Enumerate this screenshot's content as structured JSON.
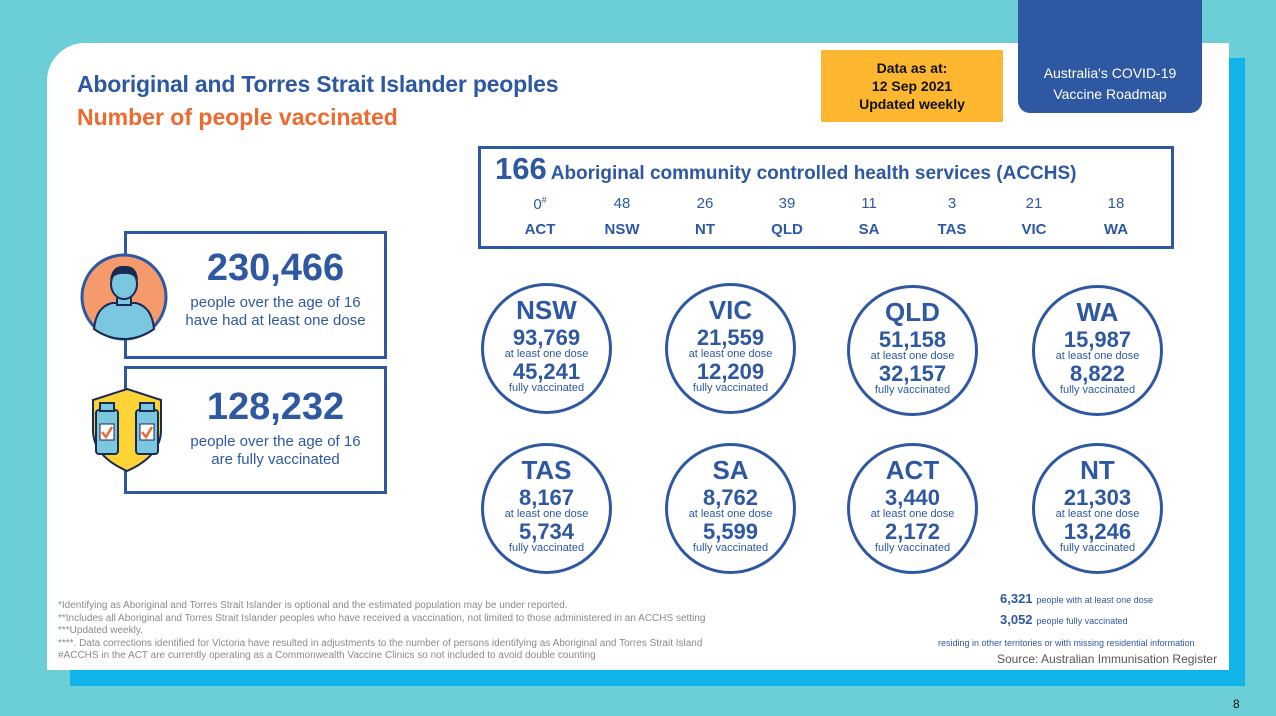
{
  "header": {
    "title_line1": "Aboriginal and Torres Strait Islander peoples",
    "title_line2": "Number of people vaccinated",
    "date_box": [
      "Data as at:",
      "12 Sep 2021",
      "Updated weekly"
    ],
    "roadmap_label": [
      "Australia's COVID-19",
      "Vaccine Roadmap"
    ]
  },
  "acchs": {
    "total": "166",
    "label": "Aboriginal community controlled health services (ACCHS)",
    "items": [
      {
        "state": "ACT",
        "count": "0",
        "mark": "#"
      },
      {
        "state": "NSW",
        "count": "48",
        "mark": ""
      },
      {
        "state": "NT",
        "count": "26",
        "mark": ""
      },
      {
        "state": "QLD",
        "count": "39",
        "mark": ""
      },
      {
        "state": "SA",
        "count": "11",
        "mark": ""
      },
      {
        "state": "TAS",
        "count": "3",
        "mark": ""
      },
      {
        "state": "VIC",
        "count": "21",
        "mark": ""
      },
      {
        "state": "WA",
        "count": "18",
        "mark": ""
      }
    ]
  },
  "summary": {
    "first_dose": {
      "value": "230,466",
      "line1": "people over the age of 16",
      "line2": "have had at least one dose"
    },
    "fully": {
      "value": "128,232",
      "line1": "people over the age of 16",
      "line2": "are fully vaccinated"
    }
  },
  "states": [
    {
      "name": "NSW",
      "dose1": "93,769",
      "dose2": "45,241"
    },
    {
      "name": "VIC",
      "dose1": "21,559",
      "dose2": "12,209"
    },
    {
      "name": "QLD",
      "dose1": "51,158",
      "dose2": "32,157"
    },
    {
      "name": "WA",
      "dose1": "15,987",
      "dose2": "8,822"
    },
    {
      "name": "TAS",
      "dose1": "8,167",
      "dose2": "5,734"
    },
    {
      "name": "SA",
      "dose1": "8,762",
      "dose2": "5,599"
    },
    {
      "name": "ACT",
      "dose1": "3,440",
      "dose2": "2,172"
    },
    {
      "name": "NT",
      "dose1": "21,303",
      "dose2": "13,246"
    }
  ],
  "labels": {
    "dose1": "at least one dose",
    "dose2": "fully vaccinated"
  },
  "other": {
    "dose1_value": "6,321",
    "dose1_label": "people with at least one dose",
    "dose2_value": "3,052",
    "dose2_label": "people fully vaccinated",
    "residing": "residing in other territories or with missing residential information"
  },
  "source": "Source: Australian Immunisation Register",
  "footnotes": [
    "*Identifying as Aboriginal and Torres Strait Islander is optional and the estimated population may be under reported.",
    "**Includes all Aboriginal and Torres Strait Islander peoples who have received a vaccination, not limited to those administered in an ACCHS setting",
    "***Updated weekly.",
    "****. Data corrections identified for Victoria have resulted in adjustments to the number of persons identifying as Aboriginal and Torres Strait Island",
    "#ACCHS in the ACT are currently operating as a Commonwealth Vaccine Clinics so not included to avoid double counting"
  ],
  "page_number": "8",
  "colors": {
    "brand_blue": "#2e58a2",
    "accent_orange": "#ef6a2e",
    "date_yellow": "#fdb62f",
    "teal_bg": "#6ccfd8",
    "cyan_shadow": "#11b4e8"
  }
}
